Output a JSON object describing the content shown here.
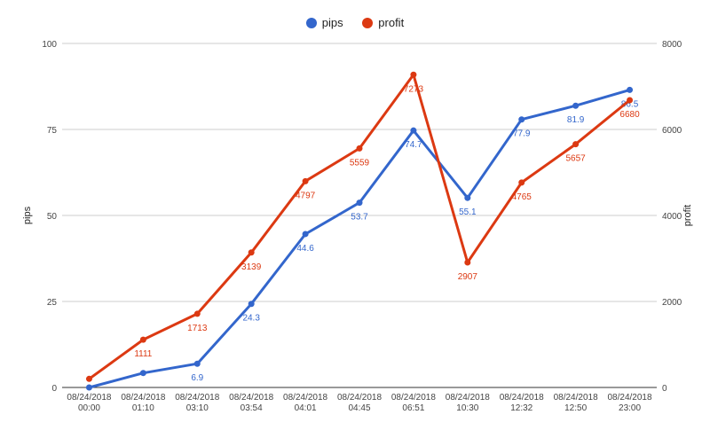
{
  "chart_data": {
    "type": "line",
    "categories": [
      [
        "08/24/2018",
        "00:00"
      ],
      [
        "08/24/2018",
        "01:10"
      ],
      [
        "08/24/2018",
        "03:10"
      ],
      [
        "08/24/2018",
        "03:54"
      ],
      [
        "08/24/2018",
        "04:01"
      ],
      [
        "08/24/2018",
        "04:45"
      ],
      [
        "08/24/2018",
        "06:51"
      ],
      [
        "08/24/2018",
        "10:30"
      ],
      [
        "08/24/2018",
        "12:32"
      ],
      [
        "08/24/2018",
        "12:50"
      ],
      [
        "08/24/2018",
        "23:00"
      ]
    ],
    "series": [
      {
        "name": "pips",
        "axis": "left",
        "color": "#3366cc",
        "values": [
          0,
          4.2,
          6.9,
          24.3,
          44.6,
          53.7,
          74.7,
          55.1,
          77.9,
          81.9,
          86.5
        ],
        "labels": [
          null,
          null,
          "6.9",
          "24.3",
          "44.6",
          "53.7",
          "74.7",
          "55.1",
          "77.9",
          "81.9",
          "86.5"
        ]
      },
      {
        "name": "profit",
        "axis": "right",
        "color": "#dc3912",
        "values": [
          200,
          1111,
          1713,
          3139,
          4797,
          5559,
          7273,
          2907,
          4765,
          5657,
          6680
        ],
        "labels": [
          null,
          "1111",
          "1713",
          "3139",
          "4797",
          "5559",
          "7273",
          "2907",
          "4765",
          "5657",
          "6680"
        ]
      }
    ],
    "left_axis": {
      "label": "pips",
      "min": 0,
      "max": 100,
      "ticks": [
        0,
        25,
        50,
        75,
        100
      ]
    },
    "right_axis": {
      "label": "profit",
      "min": 0,
      "max": 8000,
      "ticks": [
        0,
        2000,
        4000,
        6000,
        8000
      ]
    },
    "grid": true,
    "legend": "top"
  }
}
